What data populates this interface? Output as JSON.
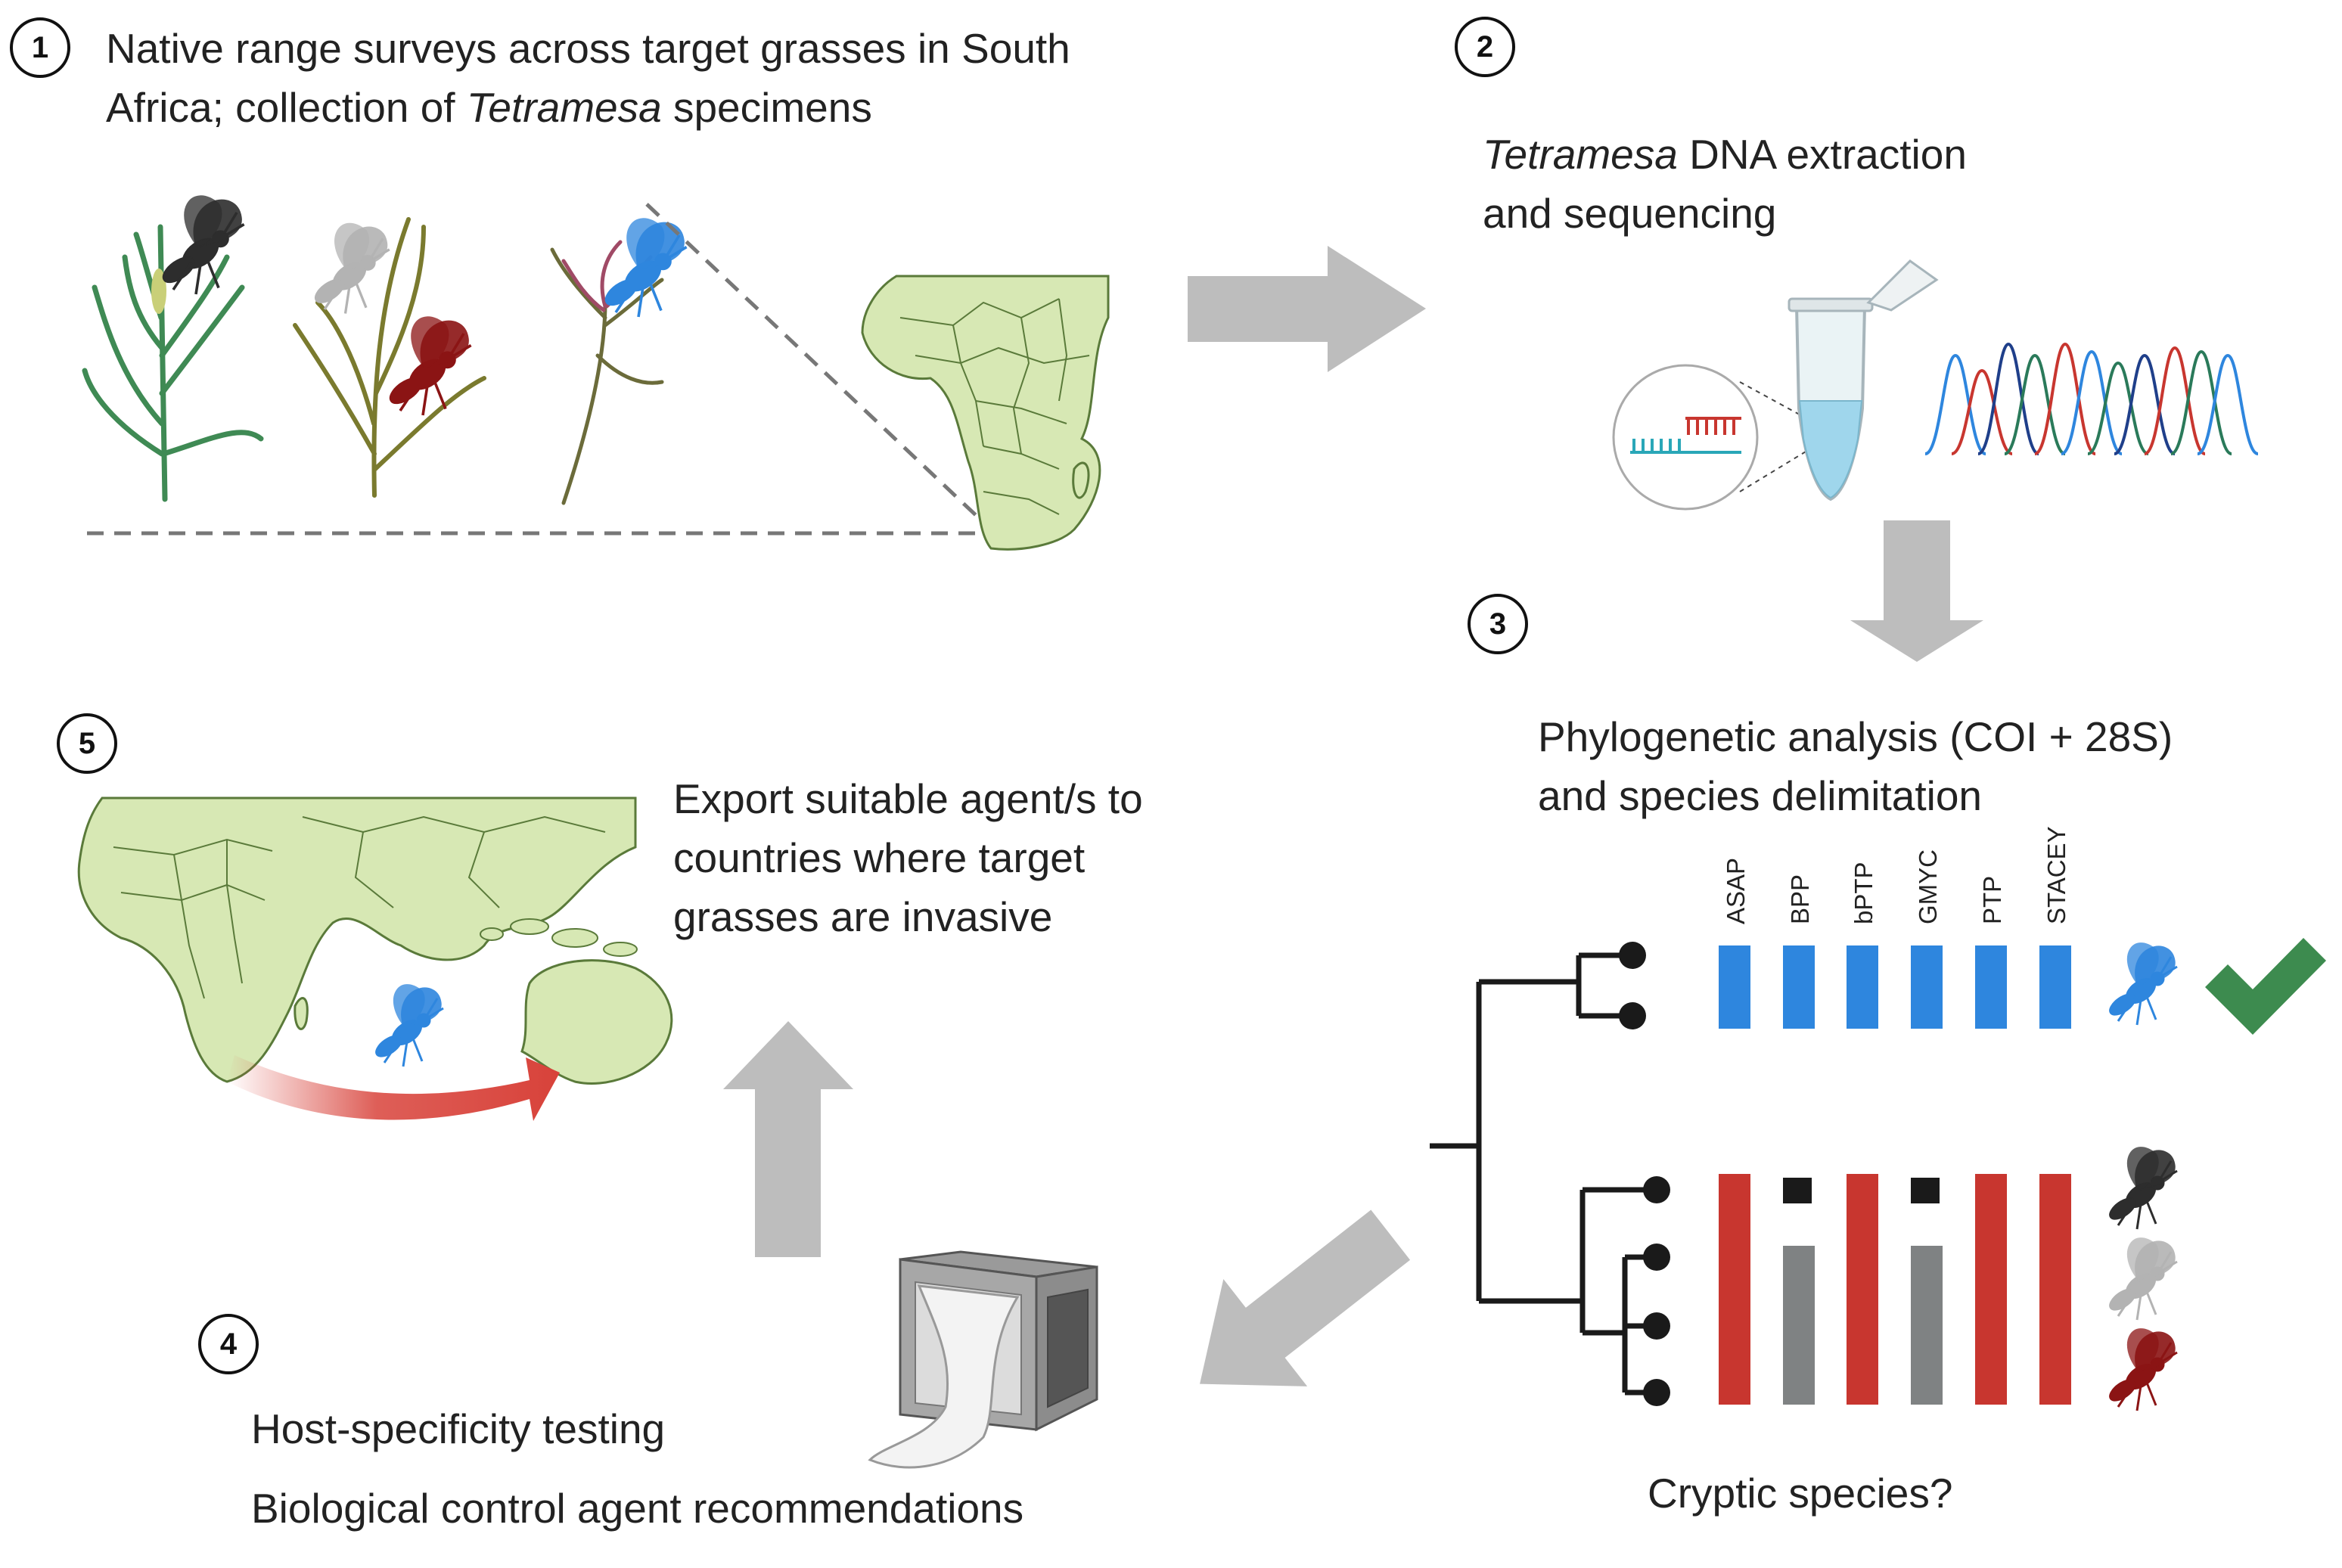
{
  "steps": [
    {
      "number": "1",
      "lines": [
        "Native range surveys across target grasses in South",
        "Africa; collection of "
      ],
      "italic": "Tetramesa",
      "tail": " specimens"
    },
    {
      "number": "2",
      "italic": "Tetramesa",
      "lines": [
        " DNA extraction",
        "and sequencing"
      ]
    },
    {
      "number": "3",
      "lines": [
        "Phylogenetic analysis (COI + 28S)",
        "and species delimitation"
      ]
    },
    {
      "number": "4",
      "lines": [
        "Host-specificity testing",
        "Biological control agent recommendations"
      ]
    },
    {
      "number": "5",
      "lines": [
        "Export suitable agent/s to",
        "countries where target",
        "grasses are invasive"
      ]
    }
  ],
  "methods": [
    "ASAP",
    "BPP",
    "bPTP",
    "GMYC",
    "PTP",
    "STACEY"
  ],
  "cryptic_label": "Cryptic species?",
  "colors": {
    "arrow_gray": "#bdbdbd",
    "blue": "#2e86de",
    "red": "#c8362f",
    "dark_red": "#8b1414",
    "gray_bar": "#7f8283",
    "black": "#1a1a1a",
    "map_green": "#d7e8b4",
    "check_green": "#3d8b4f"
  },
  "icons": [
    "grass-plant-icon",
    "wasp-icon",
    "africa-map-icon",
    "dna-icon",
    "tube-icon",
    "chromatogram-icon",
    "tree-icon",
    "checkmark-icon",
    "cage-icon",
    "world-map-icon"
  ]
}
